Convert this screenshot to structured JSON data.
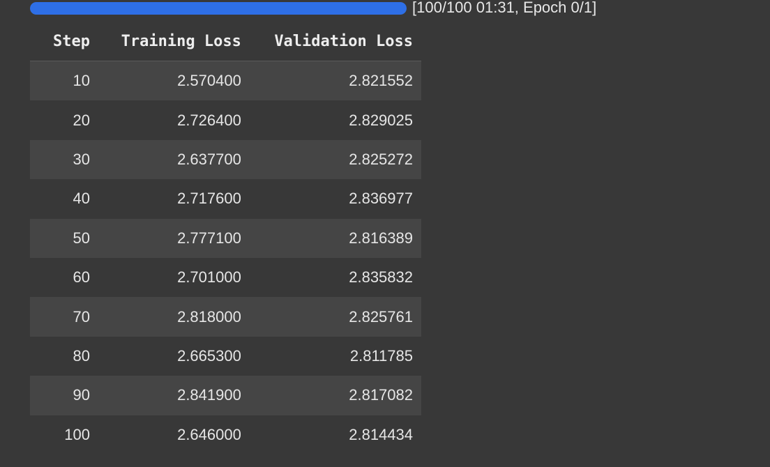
{
  "progress": {
    "fraction": 1.0,
    "label": "[100/100 01:31, Epoch 0/1]",
    "bar_color": "#2e6fe6"
  },
  "table": {
    "headers": [
      "Step",
      "Training Loss",
      "Validation Loss"
    ],
    "rows": [
      [
        "10",
        "2.570400",
        "2.821552"
      ],
      [
        "20",
        "2.726400",
        "2.829025"
      ],
      [
        "30",
        "2.637700",
        "2.825272"
      ],
      [
        "40",
        "2.717600",
        "2.836977"
      ],
      [
        "50",
        "2.777100",
        "2.816389"
      ],
      [
        "60",
        "2.701000",
        "2.835832"
      ],
      [
        "70",
        "2.818000",
        "2.825761"
      ],
      [
        "80",
        "2.665300",
        "2.811785"
      ],
      [
        "90",
        "2.841900",
        "2.817082"
      ],
      [
        "100",
        "2.646000",
        "2.814434"
      ]
    ]
  }
}
